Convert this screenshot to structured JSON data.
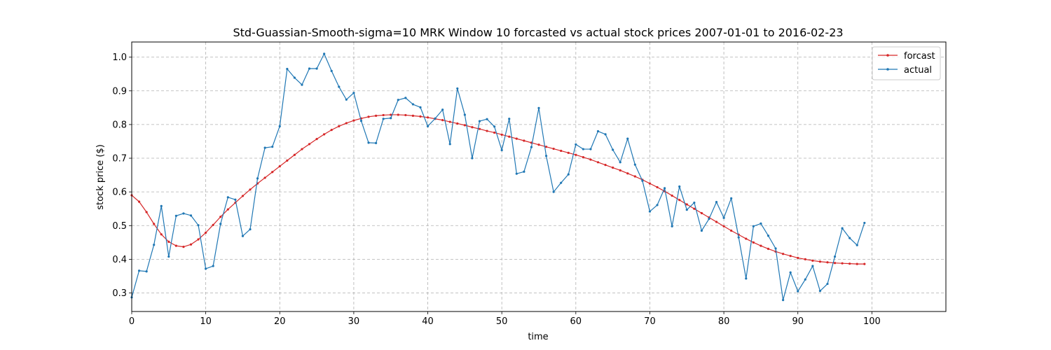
{
  "chart_data": {
    "type": "line",
    "title": "Std-Guassian-Smooth-sigma=10 MRK Window 10 forcasted vs actual stock prices 2007-01-01 to 2016-02-23",
    "xlabel": "time",
    "ylabel": "stock price ($)",
    "xlim": [
      0,
      110
    ],
    "ylim": [
      0.245,
      1.045
    ],
    "xticks": [
      0,
      10,
      20,
      30,
      40,
      50,
      60,
      70,
      80,
      90,
      100
    ],
    "yticks": [
      0.3,
      0.4,
      0.5,
      0.6,
      0.7,
      0.8,
      0.9,
      1.0
    ],
    "xtick_labels": [
      "0",
      "10",
      "20",
      "30",
      "40",
      "50",
      "60",
      "70",
      "80",
      "90",
      "100"
    ],
    "ytick_labels": [
      "0.3",
      "0.4",
      "0.5",
      "0.6",
      "0.7",
      "0.8",
      "0.9",
      "1.0"
    ],
    "grid": true,
    "legend_position": "top-right",
    "series": [
      {
        "name": "forcast",
        "color": "#d62728",
        "values": [
          0.59,
          0.571,
          0.54,
          0.505,
          0.474,
          0.452,
          0.44,
          0.437,
          0.444,
          0.459,
          0.479,
          0.502,
          0.526,
          0.548,
          0.568,
          0.588,
          0.607,
          0.625,
          0.642,
          0.659,
          0.676,
          0.693,
          0.71,
          0.727,
          0.742,
          0.757,
          0.771,
          0.784,
          0.795,
          0.804,
          0.812,
          0.818,
          0.823,
          0.826,
          0.828,
          0.829,
          0.829,
          0.828,
          0.826,
          0.824,
          0.821,
          0.817,
          0.813,
          0.808,
          0.803,
          0.798,
          0.792,
          0.787,
          0.781,
          0.776,
          0.77,
          0.764,
          0.758,
          0.752,
          0.746,
          0.74,
          0.734,
          0.728,
          0.722,
          0.716,
          0.71,
          0.703,
          0.696,
          0.688,
          0.68,
          0.672,
          0.664,
          0.655,
          0.646,
          0.636,
          0.625,
          0.614,
          0.602,
          0.589,
          0.576,
          0.563,
          0.55,
          0.537,
          0.524,
          0.511,
          0.498,
          0.485,
          0.473,
          0.461,
          0.45,
          0.44,
          0.431,
          0.423,
          0.416,
          0.41,
          0.404,
          0.4,
          0.396,
          0.393,
          0.391,
          0.389,
          0.388,
          0.387,
          0.386,
          0.386
        ]
      },
      {
        "name": "actual",
        "color": "#1f77b4",
        "values": [
          0.287,
          0.366,
          0.364,
          0.443,
          0.558,
          0.408,
          0.529,
          0.536,
          0.53,
          0.501,
          0.372,
          0.38,
          0.505,
          0.584,
          0.577,
          0.469,
          0.489,
          0.64,
          0.731,
          0.734,
          0.795,
          0.965,
          0.939,
          0.918,
          0.966,
          0.966,
          1.01,
          0.959,
          0.912,
          0.874,
          0.894,
          0.811,
          0.746,
          0.745,
          0.817,
          0.819,
          0.873,
          0.879,
          0.86,
          0.851,
          0.795,
          0.818,
          0.844,
          0.742,
          0.907,
          0.829,
          0.7,
          0.81,
          0.816,
          0.794,
          0.724,
          0.817,
          0.654,
          0.66,
          0.733,
          0.849,
          0.707,
          0.6,
          0.627,
          0.652,
          0.741,
          0.727,
          0.727,
          0.78,
          0.771,
          0.725,
          0.688,
          0.758,
          0.681,
          0.633,
          0.542,
          0.561,
          0.611,
          0.498,
          0.616,
          0.547,
          0.568,
          0.485,
          0.52,
          0.57,
          0.523,
          0.581,
          0.465,
          0.343,
          0.498,
          0.506,
          0.47,
          0.432,
          0.279,
          0.361,
          0.305,
          0.34,
          0.38,
          0.306,
          0.327,
          0.408,
          0.492,
          0.463,
          0.442,
          0.508
        ]
      }
    ]
  }
}
